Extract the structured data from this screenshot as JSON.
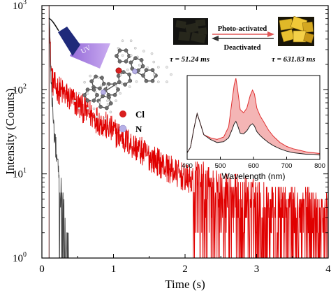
{
  "chart_data": [
    {
      "type": "line",
      "title": "",
      "xlabel": "Time (s)",
      "ylabel": "Intensity (Counts)",
      "xlim": [
        0,
        4
      ],
      "ylim": [
        1,
        1000
      ],
      "yscale": "log",
      "grid": false,
      "legend": "none",
      "x_ticks": [
        "0",
        "1",
        "2",
        "3",
        "4"
      ],
      "y_ticks": [
        {
          "base": "10",
          "exp": "0",
          "value": 1
        },
        {
          "base": "10",
          "exp": "1",
          "value": 10
        },
        {
          "base": "10",
          "exp": "2",
          "value": 100
        },
        {
          "base": "10",
          "exp": "3",
          "value": 1000
        }
      ],
      "series": [
        {
          "color": "#e00000",
          "start": 0.1,
          "peak": 1000,
          "slow_tau": 0.632,
          "tail": 3,
          "x_end": 4.0
        },
        {
          "color": "#444444",
          "start": 0.1,
          "peak": 1000,
          "slow_tau": 0.051,
          "tail": 1,
          "x_end": 1.28
        }
      ]
    },
    {
      "type": "line",
      "title": "",
      "xlabel": "Wavelength (nm)",
      "ylabel": "",
      "xlim": [
        400,
        800
      ],
      "x_ticks": [
        "400",
        "500",
        "600",
        "700",
        "800"
      ],
      "grid": false,
      "legend": "none",
      "series": [
        {
          "color": "#e03030",
          "fill": "#f4b5b5",
          "x": [
            400,
            410,
            420,
            430,
            440,
            450,
            470,
            490,
            510,
            525,
            535,
            542,
            547,
            552,
            560,
            570,
            580,
            590,
            597,
            603,
            610,
            620,
            630,
            645,
            660,
            680,
            700,
            720,
            740,
            760,
            780,
            800
          ],
          "y": [
            0.05,
            0.12,
            0.35,
            0.55,
            0.42,
            0.28,
            0.24,
            0.22,
            0.25,
            0.38,
            0.7,
            0.92,
            1.0,
            0.86,
            0.6,
            0.56,
            0.62,
            0.78,
            0.85,
            0.8,
            0.62,
            0.52,
            0.45,
            0.34,
            0.26,
            0.18,
            0.13,
            0.1,
            0.08,
            0.06,
            0.05,
            0.04
          ]
        },
        {
          "color": "#222222",
          "x": [
            400,
            410,
            420,
            430,
            440,
            450,
            470,
            490,
            510,
            525,
            535,
            542,
            547,
            552,
            560,
            570,
            580,
            590,
            597,
            603,
            610,
            620,
            630,
            645,
            660,
            680,
            700,
            720,
            740,
            760,
            780,
            800
          ],
          "y": [
            0.05,
            0.12,
            0.35,
            0.55,
            0.42,
            0.28,
            0.22,
            0.18,
            0.19,
            0.24,
            0.34,
            0.42,
            0.45,
            0.4,
            0.3,
            0.29,
            0.33,
            0.4,
            0.42,
            0.39,
            0.32,
            0.27,
            0.23,
            0.18,
            0.14,
            0.1,
            0.07,
            0.05,
            0.04,
            0.03,
            0.03,
            0.02
          ]
        }
      ]
    }
  ],
  "annotations": {
    "uv_label": "UV",
    "cl_label": "Cl",
    "n_label": "N",
    "photo_activated": "Photo-activated",
    "deactivated": "Deactivated",
    "tau_left": "τ = 51.24 ms",
    "tau_right": "τ = 631.83 ms"
  },
  "colors": {
    "red_series": "#e00000",
    "gray_series": "#444444",
    "cl_atom": "#d81f1f",
    "n_atom": "#b7b0e6",
    "uv_beam": "#a97de0",
    "flashlight": "#1f2a7a"
  }
}
